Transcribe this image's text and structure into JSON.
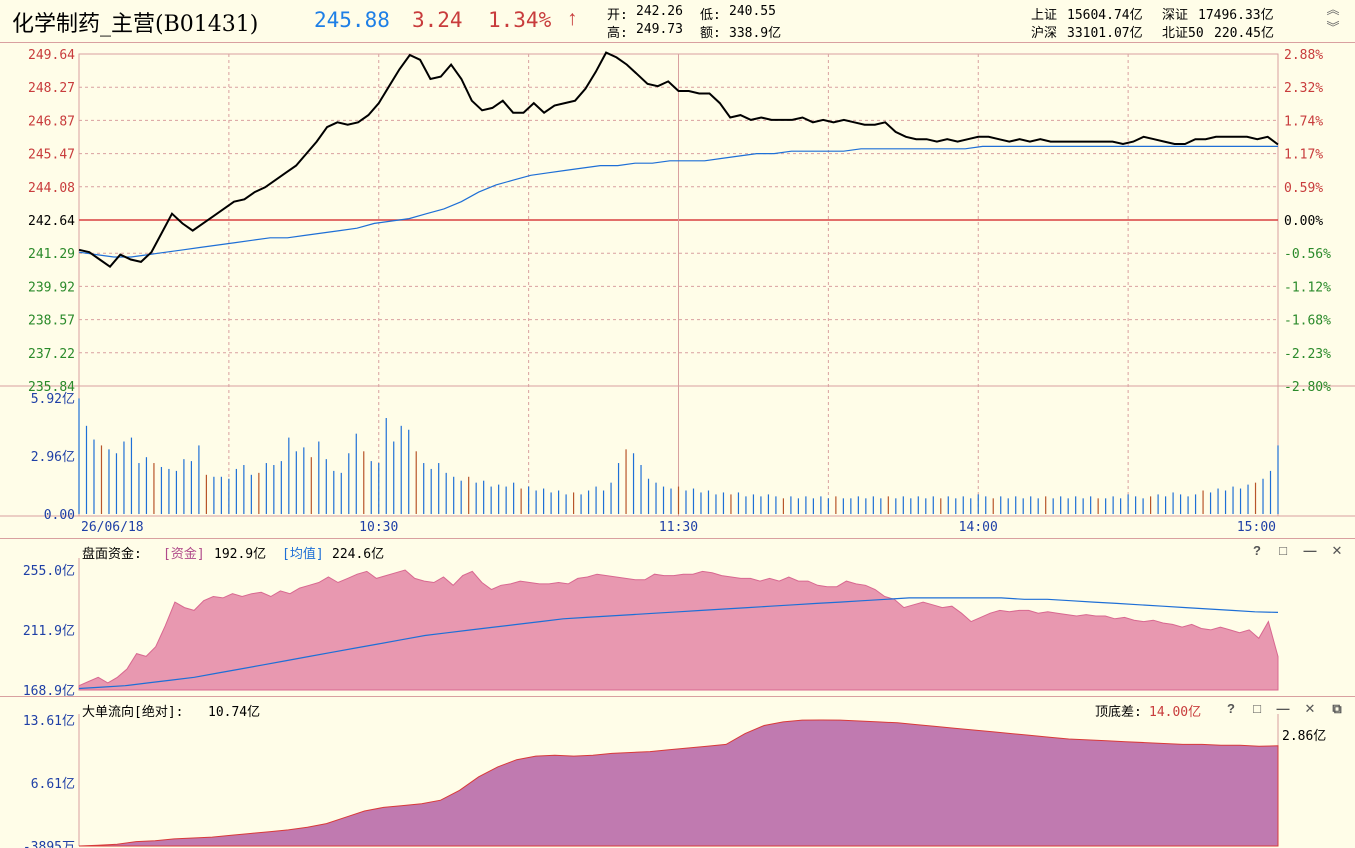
{
  "header": {
    "title": "化学制药_主营(B01431)",
    "price": "245.88",
    "change": "3.24",
    "change_pct": "1.34%",
    "up_arrow": "↑",
    "open_label": "开:",
    "open_value": "242.26",
    "low_label": "低:",
    "low_value": "240.55",
    "high_label": "高:",
    "high_value": "249.73",
    "amount_label": "额:",
    "amount_value": "338.9亿",
    "idx1_label": "上证",
    "idx1_value": "15604.74亿",
    "idx2_label": "深证",
    "idx2_value": "17496.33亿",
    "idx3_label": "沪深",
    "idx3_value": "33101.07亿",
    "idx4_label": "北证50",
    "idx4_value": "220.45亿",
    "icons": [
      "scroll-up-icon",
      "scroll-down-icon"
    ]
  },
  "colors": {
    "background": "#fffde8",
    "grid": "#d9a0a0",
    "price_line": "#000000",
    "avg_line": "#1e6fd6",
    "up_red": "#c83c3c",
    "money_fill": "#e898b0",
    "bigflow_fill": "#c07ab0"
  },
  "price_panel": {
    "left_ticks": [
      "249.64",
      "248.27",
      "246.87",
      "245.47",
      "244.08",
      "242.64",
      "241.29",
      "239.92",
      "238.57",
      "237.22",
      "235.84"
    ],
    "right_ticks": [
      "2.88%",
      "2.32%",
      "1.74%",
      "1.17%",
      "0.59%",
      "0.00%",
      "-0.56%",
      "-1.12%",
      "-1.68%",
      "-2.23%",
      "-2.80%"
    ],
    "volume_ticks": [
      "5.92亿",
      "2.96亿",
      "0.00"
    ],
    "time_labels": [
      "26/06/18",
      "10:30",
      "11:30",
      "14:00",
      "15:00"
    ]
  },
  "money_panel": {
    "title_label": "盘面资金:",
    "fund_tag": "[资金]",
    "fund_value": "192.9亿",
    "avg_tag": "[均值]",
    "avg_value": "224.6亿",
    "ticks": [
      "255.0亿",
      "211.9亿",
      "168.9亿"
    ],
    "controls": [
      "help-icon",
      "restore-icon",
      "minimize-icon",
      "close-icon"
    ]
  },
  "bigflow_panel": {
    "title_label": "大单流向[绝对]:",
    "title_value": "10.74亿",
    "diff_label": "顶底差:",
    "diff_value": "14.00亿",
    "ticks": [
      "13.61亿",
      "6.61亿",
      "-3895万"
    ],
    "right_value": "2.86亿",
    "controls": [
      "help-icon",
      "restore-icon",
      "minimize-icon",
      "close-icon",
      "popout-icon"
    ]
  },
  "chart_data": [
    {
      "type": "line",
      "title": "",
      "ylim": [
        235.84,
        249.64
      ],
      "series": [
        {
          "values": [
            241.5,
            241.4,
            241.1,
            240.8,
            241.3,
            241.1,
            241.0,
            241.4,
            242.2,
            243.0,
            242.6,
            242.3,
            242.6,
            242.9,
            243.2,
            243.5,
            243.6,
            243.9,
            244.1,
            244.4,
            244.7,
            245.0,
            245.5,
            246.0,
            246.6,
            246.8,
            246.7,
            246.8,
            247.1,
            247.6,
            248.3,
            249.0,
            249.6,
            249.4,
            248.6,
            248.7,
            249.2,
            248.6,
            247.7,
            247.3,
            247.4,
            247.7,
            247.2,
            247.2,
            247.6,
            247.2,
            247.5,
            247.6,
            247.7,
            248.2,
            248.9,
            249.7,
            249.5,
            249.2,
            248.8,
            248.4,
            248.3,
            248.5,
            248.1,
            248.1,
            248.0,
            248.0,
            247.6,
            247.0,
            247.1,
            246.9,
            247.0,
            246.9,
            246.9,
            246.9,
            247.0,
            246.8,
            246.9,
            246.8,
            246.9,
            246.8,
            246.7,
            246.7,
            246.8,
            246.4,
            246.2,
            246.1,
            246.1,
            246.0,
            246.1,
            246.0,
            246.1,
            246.2,
            246.2,
            246.1,
            246.0,
            246.1,
            246.0,
            246.1,
            246.0,
            246.0,
            246.0,
            246.0,
            246.0,
            246.0,
            246.0,
            245.9,
            246.0,
            246.2,
            246.1,
            246.0,
            245.9,
            245.9,
            246.1,
            246.1,
            246.2,
            246.2,
            246.2,
            246.2,
            246.1,
            246.2,
            245.88
          ]
        },
        {
          "values": [
            241.4,
            241.3,
            241.2,
            241.2,
            241.3,
            241.4,
            241.5,
            241.6,
            241.7,
            241.8,
            241.9,
            242.0,
            242.0,
            242.1,
            242.2,
            242.3,
            242.4,
            242.6,
            242.7,
            242.8,
            243.0,
            243.2,
            243.5,
            243.9,
            244.2,
            244.4,
            244.6,
            244.7,
            244.8,
            244.9,
            245.0,
            245.0,
            245.1,
            245.1,
            245.2,
            245.2,
            245.2,
            245.3,
            245.4,
            245.5,
            245.5,
            245.6,
            245.6,
            245.6,
            245.6,
            245.7,
            245.7,
            245.7,
            245.7,
            245.7,
            245.7,
            245.7,
            245.8,
            245.8,
            245.8,
            245.8,
            245.8,
            245.8,
            245.8,
            245.8,
            245.8,
            245.8,
            245.8,
            245.8,
            245.8,
            245.8,
            245.8,
            245.8,
            245.8,
            245.8
          ]
        }
      ]
    },
    {
      "type": "bar",
      "title": "",
      "ylabel": "成交额",
      "ylim": [
        0,
        5.92
      ],
      "values": [
        5.9,
        4.5,
        3.8,
        3.5,
        3.3,
        3.1,
        3.7,
        3.9,
        2.6,
        2.9,
        2.6,
        2.4,
        2.3,
        2.2,
        2.8,
        2.7,
        3.5,
        2.0,
        1.9,
        1.9,
        1.8,
        2.3,
        2.5,
        2.0,
        2.1,
        2.6,
        2.5,
        2.7,
        3.9,
        3.2,
        3.4,
        2.9,
        3.7,
        2.8,
        2.2,
        2.1,
        3.1,
        4.1,
        3.2,
        2.7,
        2.6,
        4.9,
        3.7,
        4.5,
        4.3,
        3.2,
        2.6,
        2.3,
        2.6,
        2.1,
        1.9,
        1.7,
        1.9,
        1.6,
        1.7,
        1.4,
        1.5,
        1.4,
        1.6,
        1.3,
        1.4,
        1.2,
        1.3,
        1.1,
        1.2,
        1.0,
        1.1,
        1.0,
        1.2,
        1.4,
        1.2,
        1.6,
        2.6,
        3.3,
        3.1,
        2.5,
        1.8,
        1.6,
        1.4,
        1.3,
        1.4,
        1.2,
        1.3,
        1.1,
        1.2,
        1.0,
        1.1,
        1.0,
        1.1,
        0.9,
        1.0,
        0.9,
        1.0,
        0.9,
        0.8,
        0.9,
        0.8,
        0.9,
        0.8,
        0.9,
        0.8,
        0.9,
        0.8,
        0.8,
        0.9,
        0.8,
        0.9,
        0.8,
        0.9,
        0.8,
        0.9,
        0.8,
        0.9,
        0.8,
        0.9,
        0.8,
        0.9,
        0.8,
        0.9,
        0.8,
        1.0,
        0.9,
        0.8,
        0.9,
        0.8,
        0.9,
        0.8,
        0.9,
        0.8,
        0.9,
        0.8,
        0.9,
        0.8,
        0.9,
        0.8,
        0.9,
        0.8,
        0.8,
        0.9,
        0.8,
        1.0,
        0.9,
        0.8,
        0.9,
        1.0,
        0.9,
        1.1,
        1.0,
        0.9,
        1.0,
        1.2,
        1.1,
        1.3,
        1.2,
        1.4,
        1.3,
        1.5,
        1.6,
        1.8,
        2.2,
        3.5
      ]
    },
    {
      "type": "area",
      "title": "",
      "ylim": [
        168.9,
        255.0
      ],
      "series": [
        {
          "name": "资金",
          "values": [
            172,
            175,
            178,
            174,
            178,
            184,
            195,
            193,
            200,
            215,
            232,
            228,
            226,
            233,
            236,
            235,
            238,
            236,
            238,
            239,
            236,
            240,
            238,
            242,
            244,
            246,
            250,
            246,
            249,
            252,
            254,
            249,
            251,
            253,
            255,
            249,
            247,
            246,
            250,
            244,
            251,
            254,
            246,
            241,
            244,
            245,
            247,
            246,
            245,
            245,
            246,
            245,
            249,
            250,
            252,
            251,
            250,
            249,
            248,
            248,
            252,
            251,
            251,
            252,
            252,
            254,
            253,
            251,
            250,
            249,
            249,
            247,
            249,
            247,
            250,
            247,
            247,
            244,
            243,
            243,
            247,
            245,
            244,
            241,
            236,
            234,
            228,
            230,
            232,
            230,
            228,
            229,
            224,
            218,
            221,
            224,
            226,
            225,
            226,
            226,
            224,
            225,
            224,
            223,
            222,
            223,
            222,
            222,
            220,
            221,
            219,
            218,
            219,
            217,
            216,
            214,
            216,
            213,
            212,
            214,
            212,
            210,
            212,
            206,
            218,
            192.9
          ]
        },
        {
          "name": "均值",
          "values": [
            170,
            171,
            172,
            174,
            176,
            178,
            181,
            184,
            187,
            190,
            193,
            196,
            199,
            202,
            205,
            208,
            210,
            212,
            214,
            216,
            218,
            220,
            221,
            222,
            223,
            224,
            225,
            226,
            227,
            228,
            229,
            230,
            231,
            232,
            233,
            234,
            235,
            235,
            235,
            235,
            235,
            234,
            234,
            233,
            232,
            231,
            230,
            229,
            228,
            227,
            226,
            225,
            224.6
          ]
        }
      ]
    },
    {
      "type": "area",
      "title": "",
      "ylim": [
        -0.3895,
        13.61
      ],
      "series": [
        {
          "name": "大单流向",
          "values": [
            -0.39,
            -0.3,
            -0.2,
            0.1,
            0.2,
            0.4,
            0.5,
            0.6,
            0.8,
            1.0,
            1.2,
            1.4,
            1.7,
            2.1,
            2.8,
            3.5,
            3.9,
            4.1,
            4.3,
            4.7,
            5.8,
            7.3,
            8.4,
            9.2,
            9.6,
            9.7,
            9.6,
            9.7,
            9.9,
            10.0,
            10.1,
            10.3,
            10.5,
            10.7,
            10.9,
            12.1,
            13.0,
            13.4,
            13.6,
            13.61,
            13.6,
            13.5,
            13.4,
            13.3,
            13.1,
            12.9,
            12.7,
            12.5,
            12.3,
            12.1,
            11.9,
            11.7,
            11.5,
            11.4,
            11.3,
            11.2,
            11.1,
            11.0,
            10.9,
            10.9,
            10.8,
            10.8,
            10.7,
            10.74
          ]
        }
      ]
    }
  ]
}
